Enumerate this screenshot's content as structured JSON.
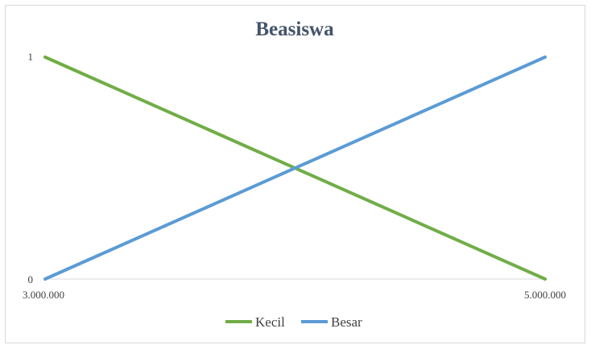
{
  "chart_data": {
    "type": "line",
    "title": "Beasiswa",
    "xlabel": "",
    "ylabel": "",
    "x": [
      3000000,
      5000000
    ],
    "x_tick_labels": [
      "3.000.000",
      "5.000.000"
    ],
    "y_tick_labels": [
      "0",
      "1"
    ],
    "xlim": [
      3000000,
      5000000
    ],
    "ylim": [
      0,
      1
    ],
    "grid": false,
    "legend_position": "bottom",
    "series": [
      {
        "name": "Kecil",
        "values": [
          1,
          0
        ],
        "color": "#70ad47"
      },
      {
        "name": "Besar",
        "values": [
          0,
          1
        ],
        "color": "#5b9bd5"
      }
    ]
  }
}
